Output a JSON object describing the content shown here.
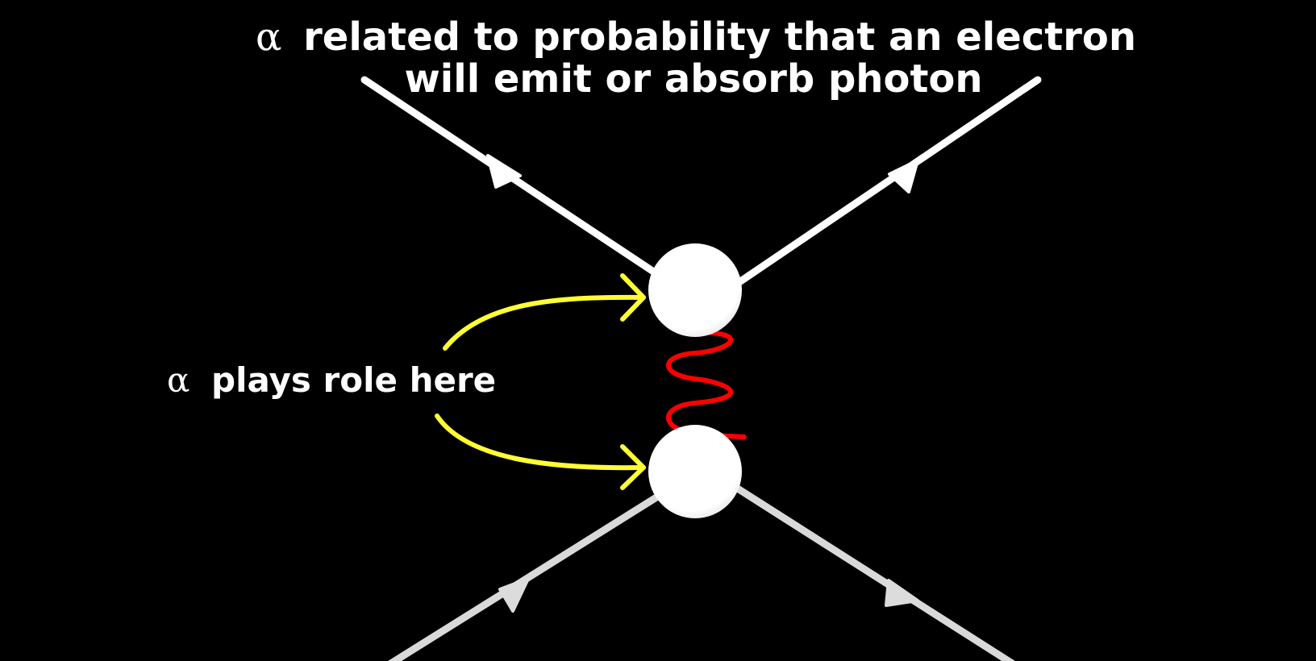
{
  "title": {
    "symbol": "α",
    "line1": "related to probability that an electron",
    "line2": "will emit or absorb photon"
  },
  "annotation": {
    "symbol": "α",
    "text": "plays role here"
  },
  "colors": {
    "background": "#000000",
    "electron_lines": "#ffffff",
    "vertex": "#ffffff",
    "photon": "#ff0000",
    "annotation_arrows": "#ffff33"
  }
}
